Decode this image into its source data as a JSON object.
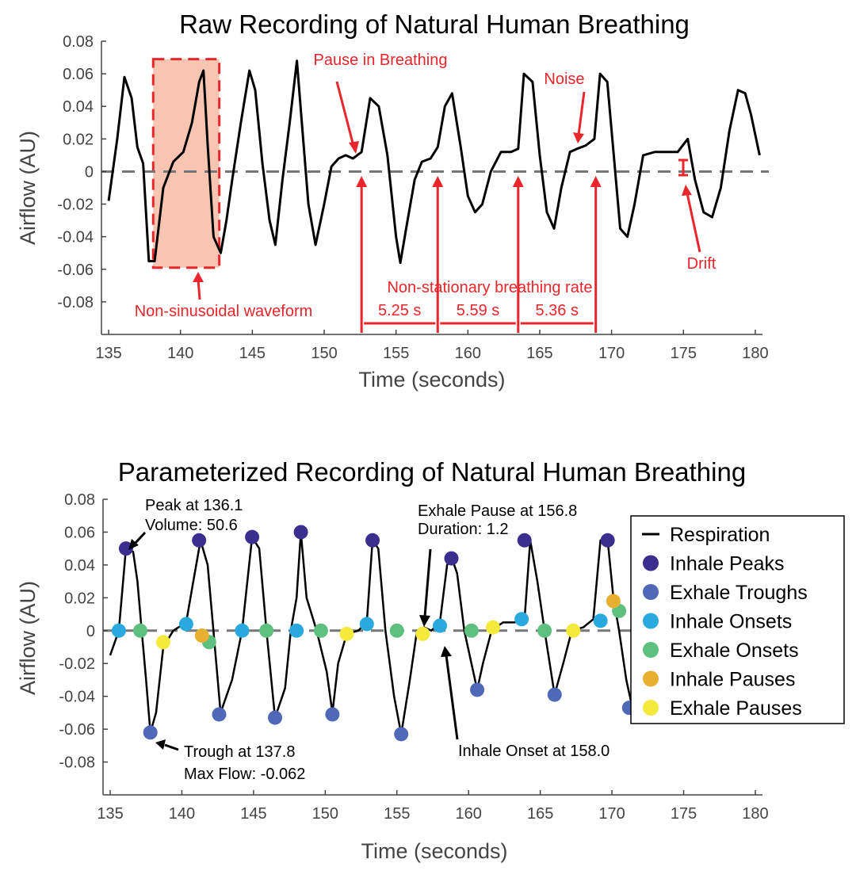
{
  "chart_data": [
    {
      "type": "line",
      "title": "Raw Recording of Natural Human Breathing",
      "xlabel": "Time (seconds)",
      "ylabel": "Airflow (AU)",
      "xlim": [
        134.5,
        180.5
      ],
      "ylim": [
        -0.1,
        0.08
      ],
      "xticks": [
        "135",
        "140",
        "145",
        "150",
        "155",
        "160",
        "165",
        "170",
        "175",
        "180"
      ],
      "yticks": [
        "0.08",
        "0.06",
        "0.04",
        "0.02",
        "0",
        "-0.02",
        "-0.04",
        "-0.06",
        "-0.08"
      ],
      "grid": false,
      "series": [
        {
          "x": [
            135.0,
            135.6,
            136.1,
            136.6,
            137.0,
            137.4,
            137.8,
            138.2,
            138.8,
            139.5,
            140.2,
            140.8,
            141.3,
            141.6,
            141.9,
            142.3,
            142.8,
            143.2,
            143.6,
            144.2,
            144.8,
            145.2,
            145.7,
            146.2,
            146.6,
            147.1,
            147.6,
            148.1,
            148.4,
            148.9,
            149.4,
            150.0,
            150.5,
            151.0,
            151.5,
            152.0,
            152.6,
            153.2,
            153.8,
            154.4,
            155.0,
            155.3,
            155.8,
            156.3,
            156.8,
            157.4,
            157.9,
            158.4,
            158.9,
            159.5,
            160.0,
            160.5,
            161.0,
            161.6,
            162.3,
            163.0,
            163.5,
            163.9,
            164.5,
            165.0,
            165.5,
            166.0,
            166.5,
            167.1,
            167.6,
            168.2,
            168.8,
            169.2,
            169.7,
            170.2,
            170.6,
            171.1,
            171.6,
            172.2,
            173.0,
            173.8,
            174.6,
            175.3,
            175.8,
            176.4,
            177.0,
            177.6,
            178.2,
            178.8,
            179.3,
            179.7,
            180.3
          ],
          "values": [
            -0.018,
            0.02,
            0.058,
            0.045,
            0.015,
            0.005,
            -0.055,
            -0.055,
            -0.01,
            0.006,
            0.012,
            0.03,
            0.055,
            0.062,
            0.015,
            -0.04,
            -0.05,
            -0.03,
            -0.005,
            0.03,
            0.062,
            0.05,
            0.005,
            -0.03,
            -0.045,
            -0.005,
            0.03,
            0.068,
            0.035,
            -0.02,
            -0.045,
            -0.02,
            0.003,
            0.008,
            0.01,
            0.008,
            0.012,
            0.045,
            0.04,
            0.01,
            -0.04,
            -0.056,
            -0.03,
            -0.005,
            0.006,
            0.008,
            0.015,
            0.04,
            0.048,
            0.015,
            -0.015,
            -0.025,
            -0.02,
            0.0,
            0.012,
            0.012,
            0.014,
            0.06,
            0.055,
            0.01,
            -0.025,
            -0.035,
            -0.01,
            0.012,
            0.014,
            0.016,
            0.02,
            0.06,
            0.055,
            0.005,
            -0.035,
            -0.04,
            -0.02,
            0.01,
            0.012,
            0.012,
            0.012,
            0.02,
            -0.005,
            -0.025,
            -0.028,
            -0.01,
            0.025,
            0.05,
            0.048,
            0.035,
            0.01
          ]
        }
      ],
      "annotations": {
        "non_sinusoidal": "Non-sinusoidal waveform",
        "pause": "Pause in Breathing",
        "noise": "Noise",
        "drift": "Drift",
        "rate": "Non-stationary breathing rate",
        "intervals": [
          "5.25 s",
          "5.59 s",
          "5.36 s"
        ],
        "interval_onsets": [
          152.6,
          157.9,
          163.5,
          168.9
        ],
        "box_x": [
          138.1,
          142.7
        ],
        "box_y": [
          -0.059,
          0.069
        ]
      }
    },
    {
      "type": "line",
      "title": "Parameterized Recording of Natural Human Breathing",
      "xlabel": "Time (seconds)",
      "ylabel": "Airflow (AU)",
      "xlim": [
        134.5,
        180.5
      ],
      "ylim": [
        -0.1,
        0.08
      ],
      "xticks": [
        "135",
        "140",
        "145",
        "150",
        "155",
        "160",
        "165",
        "170",
        "175",
        "180"
      ],
      "yticks": [
        "0.08",
        "0.06",
        "0.04",
        "0.02",
        "0",
        "-0.02",
        "-0.04",
        "-0.06",
        "-0.08"
      ],
      "grid": false,
      "legend": {
        "position": "right",
        "items": [
          {
            "name": "Respiration",
            "kind": "line",
            "color": "#000000"
          },
          {
            "name": "Inhale Peaks",
            "kind": "dot",
            "color": "#3b2e8f"
          },
          {
            "name": "Exhale Troughs",
            "kind": "dot",
            "color": "#5068b8"
          },
          {
            "name": "Inhale Onsets",
            "kind": "dot",
            "color": "#2aa9df"
          },
          {
            "name": "Exhale Onsets",
            "kind": "dot",
            "color": "#5ec07e"
          },
          {
            "name": "Inhale Pauses",
            "kind": "dot",
            "color": "#e7b031"
          },
          {
            "name": "Exhale Pauses",
            "kind": "dot",
            "color": "#f3ea3b"
          }
        ]
      },
      "series": [
        {
          "name": "Respiration",
          "x": [
            135.0,
            135.6,
            136.1,
            136.6,
            136.9,
            137.2,
            137.5,
            137.8,
            138.2,
            138.7,
            139.4,
            140.3,
            140.8,
            141.3,
            141.8,
            142.2,
            142.7,
            143.5,
            144.2,
            144.9,
            145.4,
            145.9,
            146.5,
            147.2,
            147.6,
            148.0,
            148.3,
            148.7,
            149.4,
            150.1,
            150.5,
            150.9,
            151.5,
            152.3,
            152.9,
            153.3,
            153.7,
            154.2,
            154.8,
            155.3,
            155.9,
            156.4,
            156.9,
            157.4,
            158.0,
            158.5,
            158.8,
            159.2,
            159.7,
            160.2,
            160.6,
            161.0,
            161.6,
            162.4,
            163.2,
            163.9,
            164.3,
            164.8,
            165.3,
            166.0,
            166.6,
            167.2,
            168.0,
            168.7,
            169.2,
            169.7,
            170.1,
            170.5,
            171.0,
            171.4
          ],
          "values": [
            -0.015,
            0.0,
            0.05,
            0.048,
            0.03,
            0.0,
            -0.03,
            -0.062,
            -0.05,
            -0.01,
            0.0,
            0.005,
            0.03,
            0.055,
            0.04,
            0.0,
            -0.05,
            -0.03,
            0.0,
            0.057,
            0.05,
            0.0,
            -0.053,
            -0.035,
            0.0,
            0.02,
            0.06,
            0.02,
            0.0,
            -0.025,
            -0.05,
            -0.02,
            -0.002,
            0.0,
            0.005,
            0.055,
            0.05,
            0.0,
            -0.04,
            -0.063,
            -0.03,
            0.0,
            0.002,
            0.0,
            0.005,
            0.04,
            0.045,
            0.035,
            0.0,
            -0.02,
            -0.036,
            -0.02,
            0.0,
            0.005,
            0.005,
            0.007,
            0.055,
            0.03,
            0.0,
            -0.039,
            -0.02,
            0.0,
            0.002,
            0.007,
            0.055,
            0.055,
            0.02,
            0.0,
            -0.03,
            -0.046
          ]
        }
      ],
      "points": {
        "Inhale Peaks": [
          [
            136.1,
            0.05
          ],
          [
            141.2,
            0.055
          ],
          [
            144.9,
            0.057
          ],
          [
            148.3,
            0.06
          ],
          [
            153.3,
            0.055
          ],
          [
            158.8,
            0.044
          ],
          [
            163.9,
            0.055
          ],
          [
            169.7,
            0.055
          ]
        ],
        "Exhale Troughs": [
          [
            137.8,
            -0.062
          ],
          [
            142.6,
            -0.051
          ],
          [
            146.5,
            -0.053
          ],
          [
            150.5,
            -0.051
          ],
          [
            155.3,
            -0.063
          ],
          [
            160.6,
            -0.036
          ],
          [
            166.0,
            -0.039
          ],
          [
            171.2,
            -0.047
          ]
        ],
        "Inhale Onsets": [
          [
            135.6,
            0.0
          ],
          [
            140.3,
            0.004
          ],
          [
            144.2,
            0.0
          ],
          [
            148.0,
            0.0
          ],
          [
            152.9,
            0.004
          ],
          [
            158.0,
            0.003
          ],
          [
            163.7,
            0.007
          ],
          [
            169.2,
            0.006
          ]
        ],
        "Exhale Onsets": [
          [
            137.1,
            0.0
          ],
          [
            141.9,
            -0.007
          ],
          [
            145.9,
            0.0
          ],
          [
            149.7,
            0.0
          ],
          [
            155.0,
            0.0
          ],
          [
            160.2,
            0.0
          ],
          [
            165.3,
            0.0
          ],
          [
            170.5,
            0.012
          ]
        ],
        "Inhale Pauses": [
          [
            141.4,
            -0.003
          ],
          [
            170.1,
            0.018
          ]
        ],
        "Exhale Pauses": [
          [
            138.7,
            -0.007
          ],
          [
            151.5,
            -0.002
          ],
          [
            156.8,
            -0.002
          ],
          [
            161.7,
            0.002
          ],
          [
            167.3,
            0.0
          ]
        ]
      },
      "annotations": {
        "peak": [
          "Peak at 136.1",
          "Volume: 50.6"
        ],
        "trough": [
          "Trough at 137.8",
          "Max Flow: -0.062"
        ],
        "pause": [
          "Exhale Pause at 156.8",
          "Duration: 1.2"
        ],
        "onset": "Inhale Onset at 158.0"
      }
    }
  ]
}
